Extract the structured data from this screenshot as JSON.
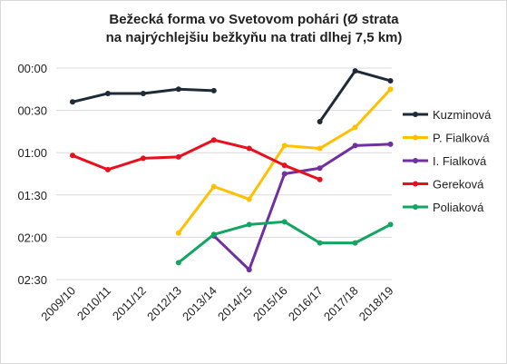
{
  "chart_data": {
    "type": "line",
    "title": [
      "Bežecká forma vo Svetovom pohári (Ø strata",
      "na najrýchlejšiu bežkyňu na trati dlhej 7,5 km)"
    ],
    "xlabel": "",
    "ylabel": "",
    "categories": [
      "2009/10",
      "2010/11",
      "2011/12",
      "2012/13",
      "2013/14",
      "2014/15",
      "2015/16",
      "2016/17",
      "2017/18",
      "2018/19"
    ],
    "y_unit": "seconds behind (axis inverted, labels mm:ss)",
    "ylim": [
      0,
      150
    ],
    "y_inverted": true,
    "y_ticks": [
      0,
      30,
      60,
      90,
      120,
      150
    ],
    "y_tick_labels": [
      "00:00",
      "00:30",
      "01:00",
      "01:30",
      "02:00",
      "02:30"
    ],
    "grid": "horizontal",
    "legend_position": "right",
    "series": [
      {
        "name": "Kuzminová",
        "color": "#1f2a38",
        "values": [
          24,
          18,
          18,
          15,
          16,
          null,
          null,
          38,
          2,
          9
        ]
      },
      {
        "name": "P. Fialková",
        "color": "#ffc000",
        "values": [
          null,
          null,
          null,
          117,
          84,
          93,
          55,
          57,
          42,
          15
        ]
      },
      {
        "name": "I. Fialková",
        "color": "#7030a0",
        "values": [
          null,
          null,
          null,
          null,
          119,
          143,
          75,
          71,
          55,
          54
        ]
      },
      {
        "name": "Gereková",
        "color": "#e8101e",
        "values": [
          62,
          72,
          64,
          63,
          51,
          57,
          69,
          79,
          null,
          null
        ]
      },
      {
        "name": "Poliaková",
        "color": "#13a562",
        "values": [
          null,
          null,
          null,
          138,
          118,
          111,
          109,
          124,
          124,
          111
        ]
      }
    ]
  }
}
